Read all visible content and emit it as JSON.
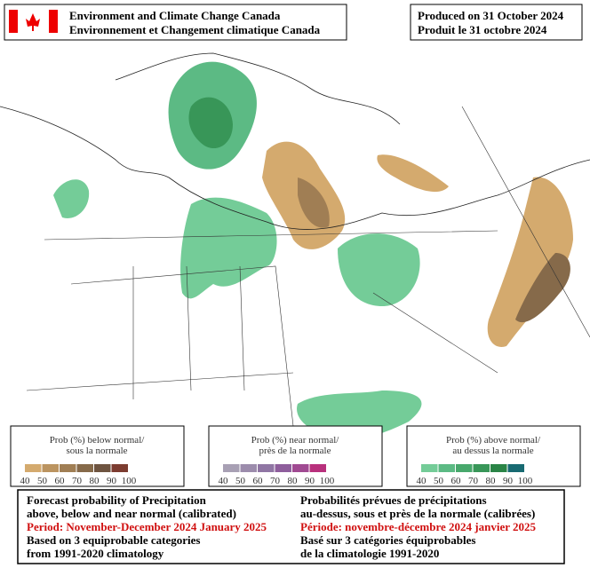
{
  "header": {
    "agency_en": "Environment and Climate Change Canada",
    "agency_fr": "Environnement et Changement climatique Canada",
    "produced_en": "Produced on 31 October 2024",
    "produced_fr": "Produit le 31 octobre 2024"
  },
  "legends": [
    {
      "title_en": "Prob (%) below normal/",
      "title_fr": "sous la normale",
      "ticks": [
        "40",
        "50",
        "60",
        "70",
        "80",
        "90",
        "100"
      ],
      "colors": [
        "#d4aa6e",
        "#bb9460",
        "#a07e54",
        "#866a4a",
        "#6e5440",
        "#7c3c30"
      ]
    },
    {
      "title_en": "Prob (%) near normal/",
      "title_fr": "près de la normale",
      "ticks": [
        "40",
        "50",
        "60",
        "70",
        "80",
        "90",
        "100"
      ],
      "colors": [
        "#a8a0b4",
        "#9c8cac",
        "#9076a4",
        "#8e5e9c",
        "#a04a92",
        "#b8307c"
      ]
    },
    {
      "title_en": "Prob (%) above normal/",
      "title_fr": "au dessus la normale",
      "ticks": [
        "40",
        "50",
        "60",
        "70",
        "80",
        "90",
        "100"
      ],
      "colors": [
        "#74cc98",
        "#5cba84",
        "#48a86c",
        "#389658",
        "#2a8446",
        "#186a72"
      ]
    }
  ],
  "footer": {
    "left": [
      "Forecast probability of Precipitation",
      "above, below and near normal (calibrated)",
      "Period: November-December 2024 January 2025",
      "Based on 3 equiprobable categories",
      " from 1991-2020 climatology"
    ],
    "right": [
      "Probabilités prévues de précipitations",
      "au-dessus, sous et près de la normale (calibrées)",
      "Période: novembre-décembre 2024 janvier 2025",
      "Basé sur 3 catégories équiprobables",
      "de la climatologie 1991-2020"
    ]
  }
}
